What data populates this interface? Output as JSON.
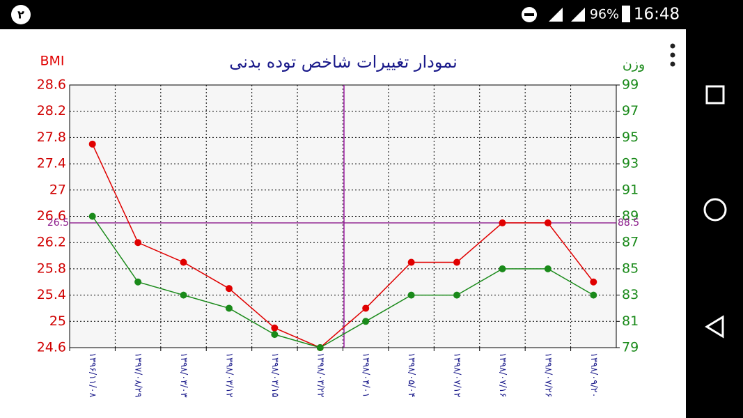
{
  "status_bar": {
    "notification": "۲",
    "battery": "96%",
    "time": "16:48"
  },
  "chart_data": {
    "type": "line",
    "title": "نمودار تغییرات شاخص توده بدنی",
    "y_label": "BMI",
    "y2_label": "وزن",
    "categories": [
      "۱۳۹۶/۱۱/۰۸",
      "۱۳۹۷/۰۸/۲۹",
      "۱۳۹۸/۰۳/۰۳",
      "۱۳۹۸/۰۳/۱۲",
      "۱۳۹۸/۰۳/۱۵",
      "۱۳۹۸/۰۳/۲۲",
      "۱۳۹۸/۰۴/۰۱",
      "۱۳۹۸/۰۵/۰۴",
      "۱۳۹۸/۰۷/۱۲",
      "۱۳۹۸/۰۷/۱۶",
      "۱۳۹۸/۰۷/۲۶",
      "۱۳۹۸/۰۹/۲۰"
    ],
    "series": [
      {
        "color": "#e00000",
        "values": [
          27.7,
          26.2,
          25.9,
          25.5,
          24.9,
          24.6,
          25.2,
          25.9,
          25.9,
          26.5,
          26.5,
          25.6
        ]
      },
      {
        "color": "#1a8a1a",
        "axis": "y2",
        "values": [
          89,
          84,
          83,
          82,
          80,
          79,
          81,
          83,
          83,
          85,
          85,
          83
        ]
      }
    ],
    "ylim": [
      24.6,
      28.6
    ],
    "yticks": [
      24.6,
      25,
      25.4,
      25.8,
      26.2,
      26.6,
      27,
      27.4,
      27.8,
      28.2,
      28.6
    ],
    "y2lim": [
      79,
      99
    ],
    "y2ticks": [
      79,
      81,
      83,
      85,
      87,
      89,
      91,
      93,
      95,
      97,
      99
    ],
    "grid": true,
    "reference_line": {
      "y": 26.5,
      "y2": 88.5
    }
  }
}
